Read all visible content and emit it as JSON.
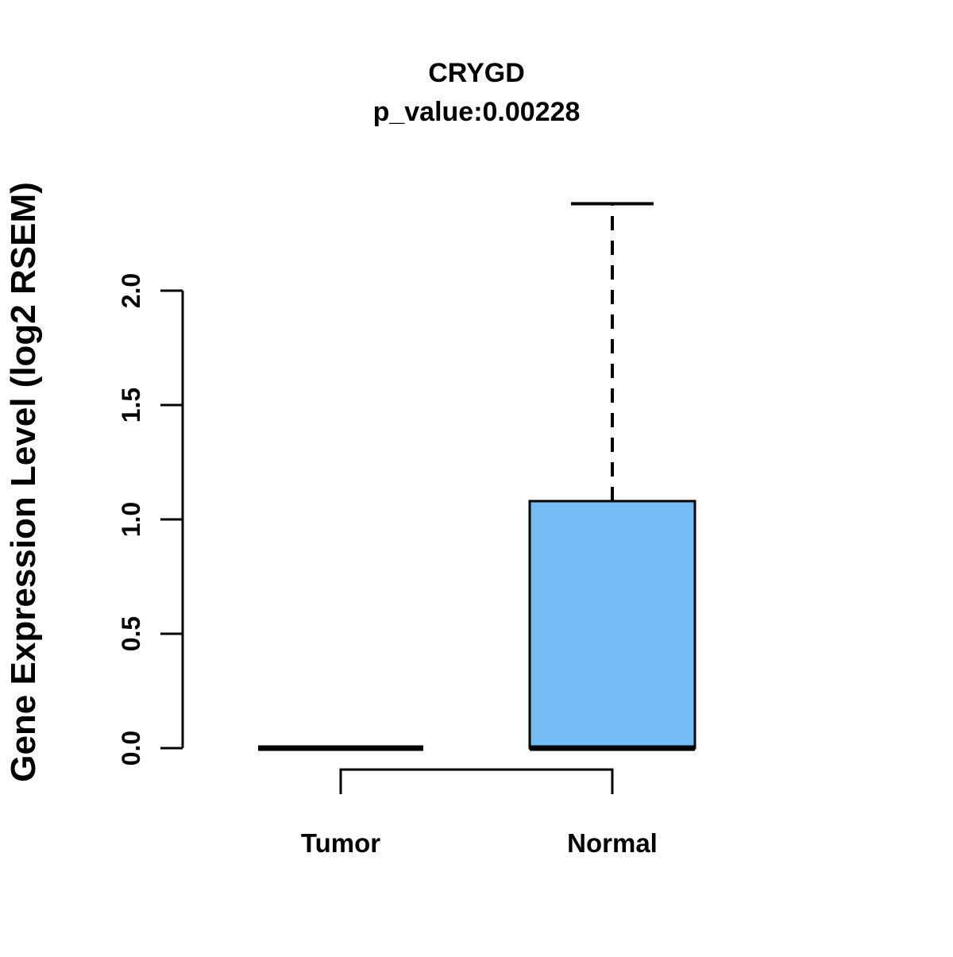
{
  "title": "CRYGD",
  "subtitle": "p_value:0.00228",
  "ylabel": "Gene Expression Level (log2 RSEM)",
  "colors": {
    "background": "#ffffff",
    "line": "#000000",
    "text": "#000000",
    "box_fill": "#75BEF5"
  },
  "chart_data": {
    "type": "boxplot",
    "title": "CRYGD",
    "subtitle": "p_value:0.00228",
    "xlabel": "",
    "ylabel": "Gene Expression Level (log2 RSEM)",
    "categories": [
      "Tumor",
      "Normal"
    ],
    "yticks": [
      0.0,
      0.5,
      1.0,
      1.5,
      2.0
    ],
    "ytick_labels": [
      "0.0",
      "0.5",
      "1.0",
      "1.5",
      "2.0"
    ],
    "ylim": [
      0,
      2.4
    ],
    "grid": false,
    "legend": "none",
    "series": [
      {
        "name": "Tumor",
        "min": 0,
        "q1": 0,
        "median": 0,
        "q3": 0,
        "max": 0
      },
      {
        "name": "Normal",
        "min": 0,
        "q1": 0,
        "median": 0,
        "q3": 1.08,
        "max": 2.38
      }
    ]
  }
}
